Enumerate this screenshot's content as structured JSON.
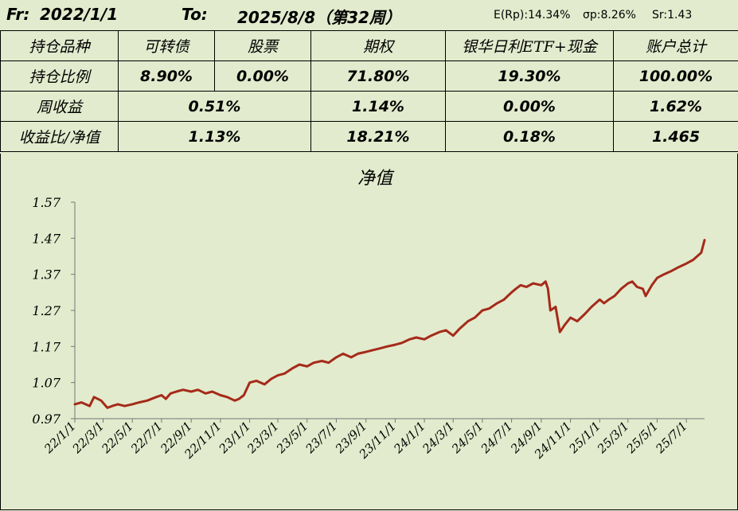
{
  "header": {
    "from_label": "Fr:",
    "from_date": "2022/1/1",
    "to_label": "To:",
    "to_date": "2025/8/8（第32周）",
    "e_rp": "E(Rp):14.34%",
    "sigma_p": "σp:8.26%",
    "sr": "Sr:1.43"
  },
  "table": {
    "col_headers": [
      "持仓品种",
      "可转债",
      "股票",
      "期权",
      "银华日利ETF+现金",
      "账户总计"
    ],
    "row_position": {
      "label": "持仓比例",
      "values": [
        "8.90%",
        "0.00%",
        "71.80%",
        "19.30%",
        "100.00%"
      ]
    },
    "row_weekly": {
      "label": "周收益",
      "values": [
        "0.51%",
        "1.14%",
        "0.00%",
        "1.62%"
      ]
    },
    "row_ratio": {
      "label": "收益比/净值",
      "values": [
        "1.13%",
        "18.21%",
        "0.18%",
        "1.465"
      ]
    }
  },
  "chart_data": {
    "type": "line",
    "title": "净值",
    "xlabel": "",
    "ylabel": "",
    "ylim": [
      0.97,
      1.57
    ],
    "yticks": [
      "0.97",
      "1.07",
      "1.17",
      "1.27",
      "1.37",
      "1.47",
      "1.57"
    ],
    "xticks": [
      "22/1/1",
      "22/3/1",
      "22/5/1",
      "22/7/1",
      "22/9/1",
      "22/11/1",
      "23/1/1",
      "23/3/1",
      "23/5/1",
      "23/7/1",
      "23/9/1",
      "23/11/1",
      "24/1/1",
      "24/3/1",
      "24/5/1",
      "24/7/1",
      "24/9/1",
      "24/11/1",
      "25/1/1",
      "25/3/1",
      "25/5/1",
      "25/7/1"
    ],
    "grid": false,
    "line_color": "#a52a1a",
    "series": [
      {
        "x": [
          "2022-01-01",
          "2022-01-15",
          "2022-02-01",
          "2022-02-10",
          "2022-02-25",
          "2022-03-10",
          "2022-03-20",
          "2022-04-01",
          "2022-04-15",
          "2022-05-01",
          "2022-05-15",
          "2022-06-01",
          "2022-06-20",
          "2022-07-01",
          "2022-07-10",
          "2022-07-20",
          "2022-08-01",
          "2022-08-15",
          "2022-09-01",
          "2022-09-15",
          "2022-10-01",
          "2022-10-15",
          "2022-11-01",
          "2022-11-15",
          "2022-12-01",
          "2022-12-10",
          "2022-12-20",
          "2023-01-01",
          "2023-01-15",
          "2023-02-01",
          "2023-02-15",
          "2023-03-01",
          "2023-03-15",
          "2023-04-01",
          "2023-04-15",
          "2023-05-01",
          "2023-05-15",
          "2023-06-01",
          "2023-06-15",
          "2023-07-01",
          "2023-07-15",
          "2023-08-01",
          "2023-08-15",
          "2023-09-01",
          "2023-09-15",
          "2023-10-01",
          "2023-10-15",
          "2023-11-01",
          "2023-11-15",
          "2023-12-01",
          "2023-12-15",
          "2024-01-01",
          "2024-01-15",
          "2024-02-01",
          "2024-02-15",
          "2024-03-01",
          "2024-03-15",
          "2024-04-01",
          "2024-04-15",
          "2024-05-01",
          "2024-05-15",
          "2024-06-01",
          "2024-06-15",
          "2024-07-01",
          "2024-07-10",
          "2024-07-20",
          "2024-08-01",
          "2024-08-15",
          "2024-09-01",
          "2024-09-10",
          "2024-09-15",
          "2024-09-20",
          "2024-10-01",
          "2024-10-10",
          "2024-10-20",
          "2024-11-01",
          "2024-11-15",
          "2024-12-01",
          "2024-12-15",
          "2025-01-01",
          "2025-01-10",
          "2025-01-20",
          "2025-02-01",
          "2025-02-15",
          "2025-03-01",
          "2025-03-10",
          "2025-03-20",
          "2025-04-01",
          "2025-04-07",
          "2025-04-20",
          "2025-05-01",
          "2025-05-15",
          "2025-06-01",
          "2025-06-15",
          "2025-07-01",
          "2025-07-15",
          "2025-08-01",
          "2025-08-08"
        ],
        "y": [
          1.01,
          1.015,
          1.005,
          1.03,
          1.02,
          1.0,
          1.005,
          1.01,
          1.005,
          1.01,
          1.015,
          1.02,
          1.03,
          1.035,
          1.025,
          1.04,
          1.045,
          1.05,
          1.045,
          1.05,
          1.04,
          1.045,
          1.035,
          1.03,
          1.02,
          1.025,
          1.035,
          1.07,
          1.075,
          1.065,
          1.08,
          1.09,
          1.095,
          1.11,
          1.12,
          1.115,
          1.125,
          1.13,
          1.125,
          1.14,
          1.15,
          1.14,
          1.15,
          1.155,
          1.16,
          1.165,
          1.17,
          1.175,
          1.18,
          1.19,
          1.195,
          1.19,
          1.2,
          1.21,
          1.215,
          1.2,
          1.22,
          1.24,
          1.25,
          1.27,
          1.275,
          1.29,
          1.3,
          1.32,
          1.33,
          1.34,
          1.335,
          1.345,
          1.34,
          1.35,
          1.33,
          1.27,
          1.28,
          1.21,
          1.23,
          1.25,
          1.24,
          1.26,
          1.28,
          1.3,
          1.29,
          1.3,
          1.31,
          1.33,
          1.345,
          1.35,
          1.335,
          1.33,
          1.31,
          1.34,
          1.36,
          1.37,
          1.38,
          1.39,
          1.4,
          1.41,
          1.43,
          1.465
        ]
      }
    ]
  }
}
